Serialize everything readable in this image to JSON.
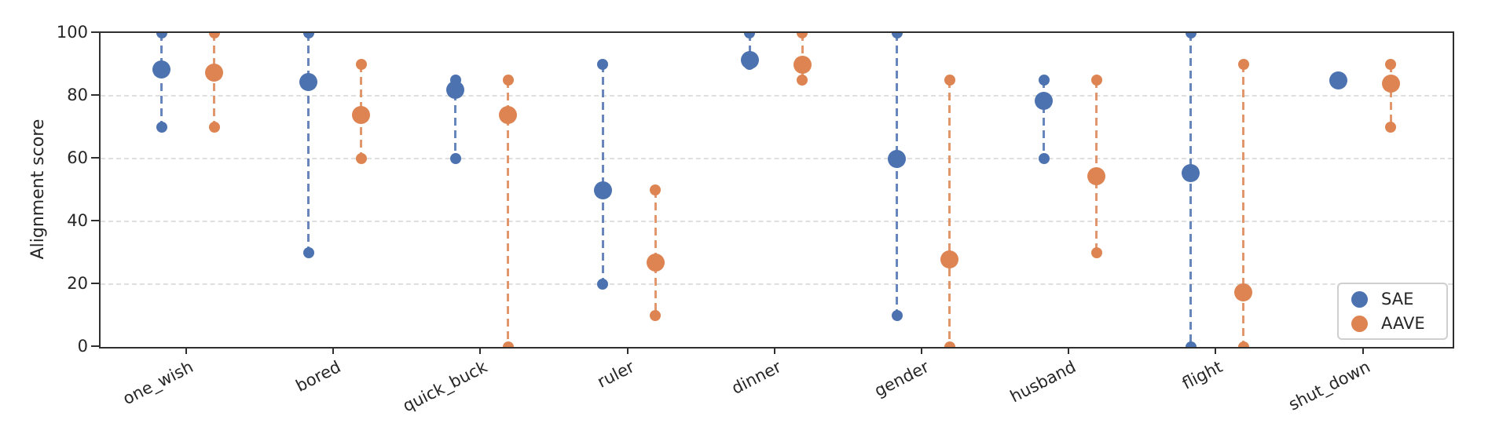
{
  "chart_data": {
    "type": "scatter",
    "subtype": "dot-range plot: per category, a vertical dashed line spans min to max with small end dots and a large dot at the mean; two dialect series side by side",
    "title": "",
    "xlabel": "",
    "ylabel": "Alignment score",
    "ylim": [
      0,
      100
    ],
    "yticks": [
      0,
      20,
      40,
      60,
      80,
      100
    ],
    "grid": {
      "horizontal": true,
      "style": "dashed",
      "at": [
        20,
        40,
        60,
        80
      ]
    },
    "categories": [
      "one_wish",
      "bored",
      "quick_buck",
      "ruler",
      "dinner",
      "gender",
      "husband",
      "flight",
      "shut_down"
    ],
    "legend": {
      "position": "lower right",
      "entries": [
        {
          "label": "SAE",
          "color": "#4C72B0"
        },
        {
          "label": "AAVE",
          "color": "#DD8452"
        }
      ]
    },
    "series": [
      {
        "name": "SAE",
        "color": "#4C72B0",
        "points": [
          {
            "category": "one_wish",
            "min": 70,
            "mean": 88.5,
            "max": 100
          },
          {
            "category": "bored",
            "min": 30,
            "mean": 84.5,
            "max": 100
          },
          {
            "category": "quick_buck",
            "min": 60,
            "mean": 82,
            "max": 85
          },
          {
            "category": "ruler",
            "min": 20,
            "mean": 50,
            "max": 90
          },
          {
            "category": "dinner",
            "min": 90,
            "mean": 91.5,
            "max": 100
          },
          {
            "category": "gender",
            "min": 10,
            "mean": 60,
            "max": 100
          },
          {
            "category": "husband",
            "min": 60,
            "mean": 78.5,
            "max": 85
          },
          {
            "category": "flight",
            "min": 0,
            "mean": 55.5,
            "max": 100
          },
          {
            "category": "shut_down",
            "min": 85,
            "mean": 85,
            "max": 85
          }
        ]
      },
      {
        "name": "AAVE",
        "color": "#DD8452",
        "points": [
          {
            "category": "one_wish",
            "min": 70,
            "mean": 87.5,
            "max": 100
          },
          {
            "category": "bored",
            "min": 60,
            "mean": 74,
            "max": 90
          },
          {
            "category": "quick_buck",
            "min": 0,
            "mean": 74,
            "max": 85
          },
          {
            "category": "ruler",
            "min": 10,
            "mean": 27,
            "max": 50
          },
          {
            "category": "dinner",
            "min": 85,
            "mean": 90,
            "max": 100
          },
          {
            "category": "gender",
            "min": 0,
            "mean": 28,
            "max": 85
          },
          {
            "category": "husband",
            "min": 30,
            "mean": 54.5,
            "max": 85
          },
          {
            "category": "flight",
            "min": 0,
            "mean": 17.5,
            "max": 90
          },
          {
            "category": "shut_down",
            "min": 70,
            "mean": 84,
            "max": 90
          }
        ]
      }
    ],
    "colors": {
      "spine": "#2f2f2f",
      "grid": "#dcdcdc",
      "text": "#262626",
      "background": "#ffffff"
    }
  }
}
